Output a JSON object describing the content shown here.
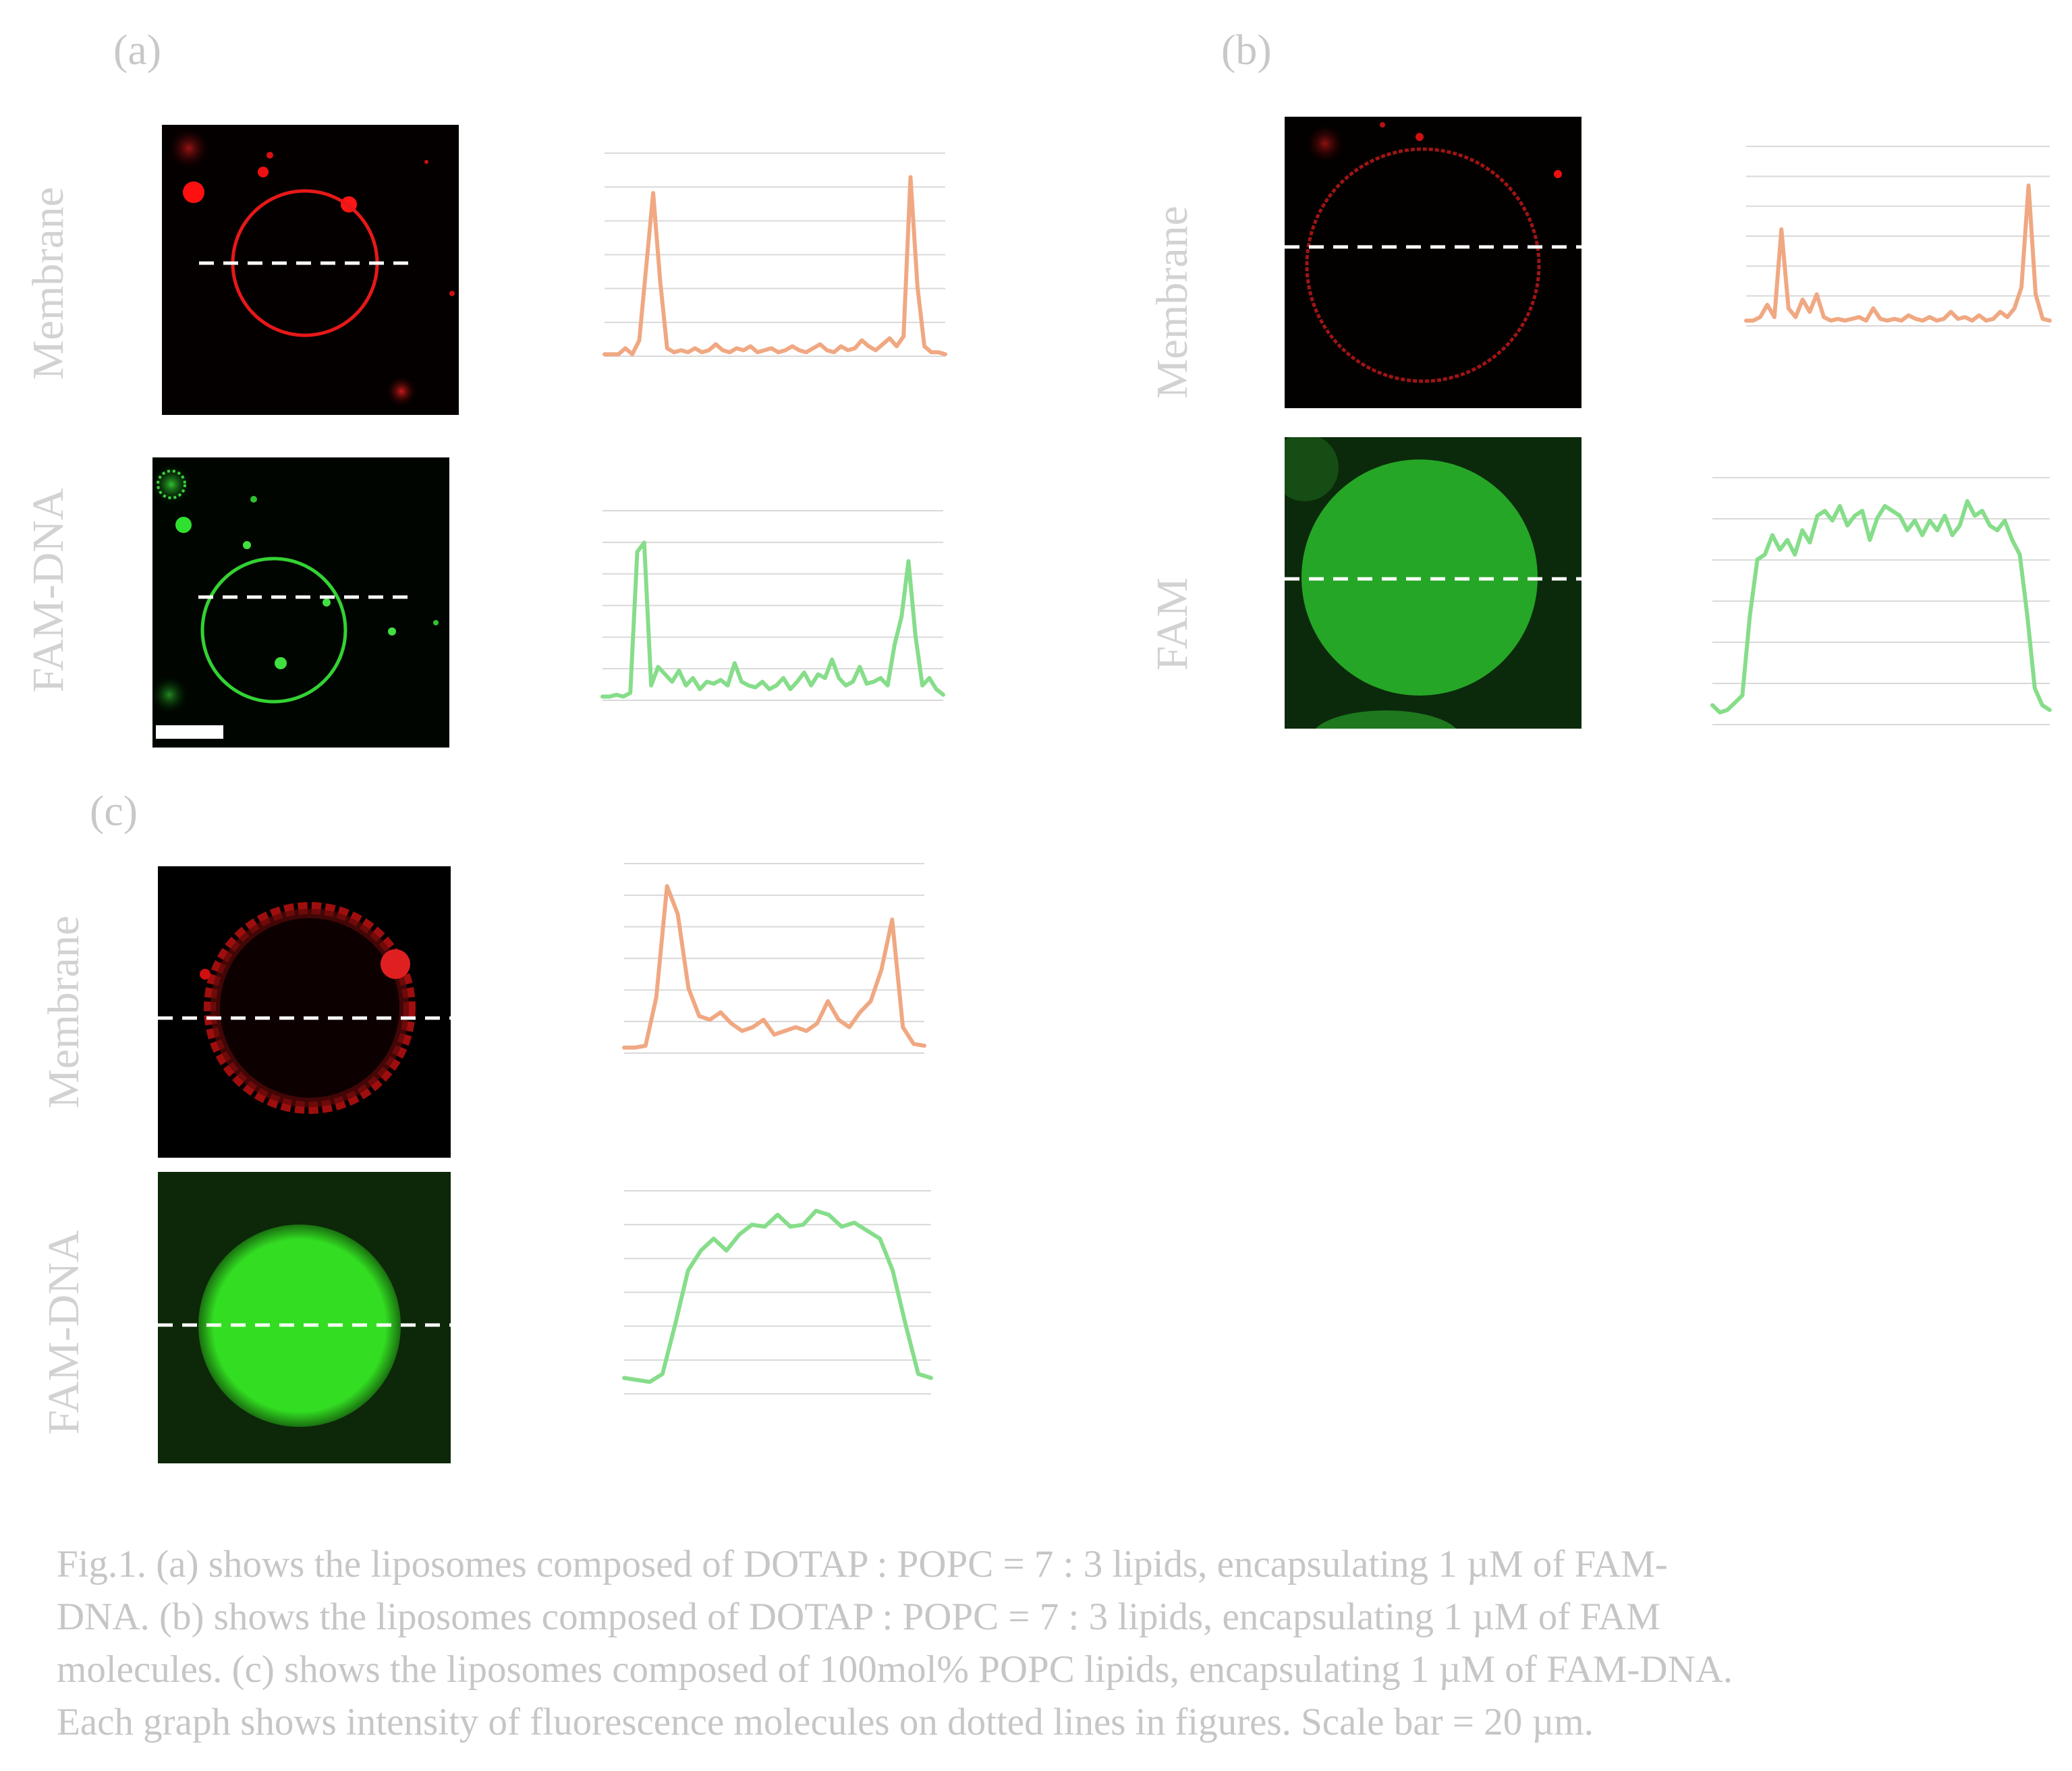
{
  "panels": {
    "a": {
      "label": "(a)",
      "rows": [
        {
          "label": "Membrane",
          "channel": "red",
          "profile_color": "#f0a882",
          "profile": [
            0.01,
            0.01,
            0.01,
            0.04,
            0.01,
            0.08,
            0.45,
            0.82,
            0.38,
            0.04,
            0.02,
            0.03,
            0.02,
            0.04,
            0.02,
            0.03,
            0.06,
            0.03,
            0.02,
            0.04,
            0.03,
            0.05,
            0.02,
            0.03,
            0.04,
            0.02,
            0.03,
            0.05,
            0.03,
            0.02,
            0.04,
            0.06,
            0.03,
            0.02,
            0.05,
            0.03,
            0.04,
            0.08,
            0.05,
            0.03,
            0.06,
            0.09,
            0.05,
            0.1,
            0.9,
            0.35,
            0.05,
            0.02,
            0.02,
            0.01
          ]
        },
        {
          "label": "FAM-DNA",
          "channel": "green",
          "profile_color": "#86dd8a",
          "profile": [
            0.02,
            0.02,
            0.03,
            0.02,
            0.04,
            0.8,
            0.85,
            0.08,
            0.18,
            0.14,
            0.1,
            0.16,
            0.08,
            0.12,
            0.06,
            0.1,
            0.09,
            0.11,
            0.08,
            0.2,
            0.1,
            0.08,
            0.07,
            0.1,
            0.06,
            0.08,
            0.12,
            0.06,
            0.1,
            0.15,
            0.08,
            0.14,
            0.12,
            0.22,
            0.12,
            0.08,
            0.1,
            0.18,
            0.09,
            0.1,
            0.12,
            0.08,
            0.3,
            0.45,
            0.75,
            0.35,
            0.08,
            0.12,
            0.06,
            0.03
          ]
        }
      ]
    },
    "b": {
      "label": "(b)",
      "rows": [
        {
          "label": "Membrane",
          "channel": "red",
          "profile_color": "#f0a882",
          "profile": [
            0.03,
            0.03,
            0.05,
            0.12,
            0.05,
            0.55,
            0.1,
            0.05,
            0.15,
            0.08,
            0.18,
            0.05,
            0.03,
            0.04,
            0.03,
            0.04,
            0.05,
            0.03,
            0.1,
            0.04,
            0.03,
            0.04,
            0.03,
            0.06,
            0.04,
            0.03,
            0.05,
            0.03,
            0.04,
            0.08,
            0.04,
            0.05,
            0.03,
            0.06,
            0.03,
            0.04,
            0.08,
            0.05,
            0.1,
            0.22,
            0.8,
            0.18,
            0.04,
            0.03
          ]
        },
        {
          "label": "FAM",
          "channel": "green",
          "profile_color": "#86dd8a",
          "profile": [
            0.08,
            0.05,
            0.06,
            0.09,
            0.12,
            0.45,
            0.68,
            0.7,
            0.78,
            0.72,
            0.76,
            0.7,
            0.8,
            0.75,
            0.86,
            0.88,
            0.84,
            0.9,
            0.82,
            0.86,
            0.88,
            0.76,
            0.85,
            0.9,
            0.88,
            0.86,
            0.8,
            0.84,
            0.78,
            0.84,
            0.8,
            0.86,
            0.78,
            0.82,
            0.92,
            0.86,
            0.88,
            0.82,
            0.8,
            0.84,
            0.76,
            0.7,
            0.45,
            0.15,
            0.08,
            0.06
          ]
        }
      ]
    },
    "c": {
      "label": "(c)",
      "rows": [
        {
          "label": "Membrane",
          "channel": "red",
          "profile_color": "#f0a882",
          "profile": [
            0.03,
            0.03,
            0.04,
            0.3,
            0.9,
            0.75,
            0.35,
            0.2,
            0.18,
            0.22,
            0.16,
            0.12,
            0.14,
            0.18,
            0.1,
            0.12,
            0.14,
            0.12,
            0.16,
            0.28,
            0.18,
            0.14,
            0.22,
            0.28,
            0.45,
            0.72,
            0.14,
            0.05,
            0.04
          ]
        },
        {
          "label": "FAM-DNA",
          "channel": "green",
          "profile_color": "#86dd8a",
          "profile": [
            0.08,
            0.07,
            0.06,
            0.1,
            0.35,
            0.62,
            0.72,
            0.78,
            0.72,
            0.8,
            0.85,
            0.84,
            0.9,
            0.84,
            0.85,
            0.92,
            0.9,
            0.84,
            0.86,
            0.82,
            0.78,
            0.62,
            0.35,
            0.1,
            0.08
          ]
        }
      ]
    }
  },
  "caption": [
    "Fig.1. (a) shows the liposomes composed of DOTAP : POPC = 7 : 3 lipids, encapsulating 1 µM of FAM-",
    "DNA. (b) shows the liposomes composed of DOTAP : POPC = 7 : 3 lipids, encapsulating 1 µM of FAM",
    "molecules. (c) shows the liposomes composed of 100mol% POPC lipids, encapsulating 1 µM of FAM-DNA.",
    "Each graph shows intensity of fluorescence molecules on dotted lines in figures. Scale bar = 20 µm."
  ]
}
